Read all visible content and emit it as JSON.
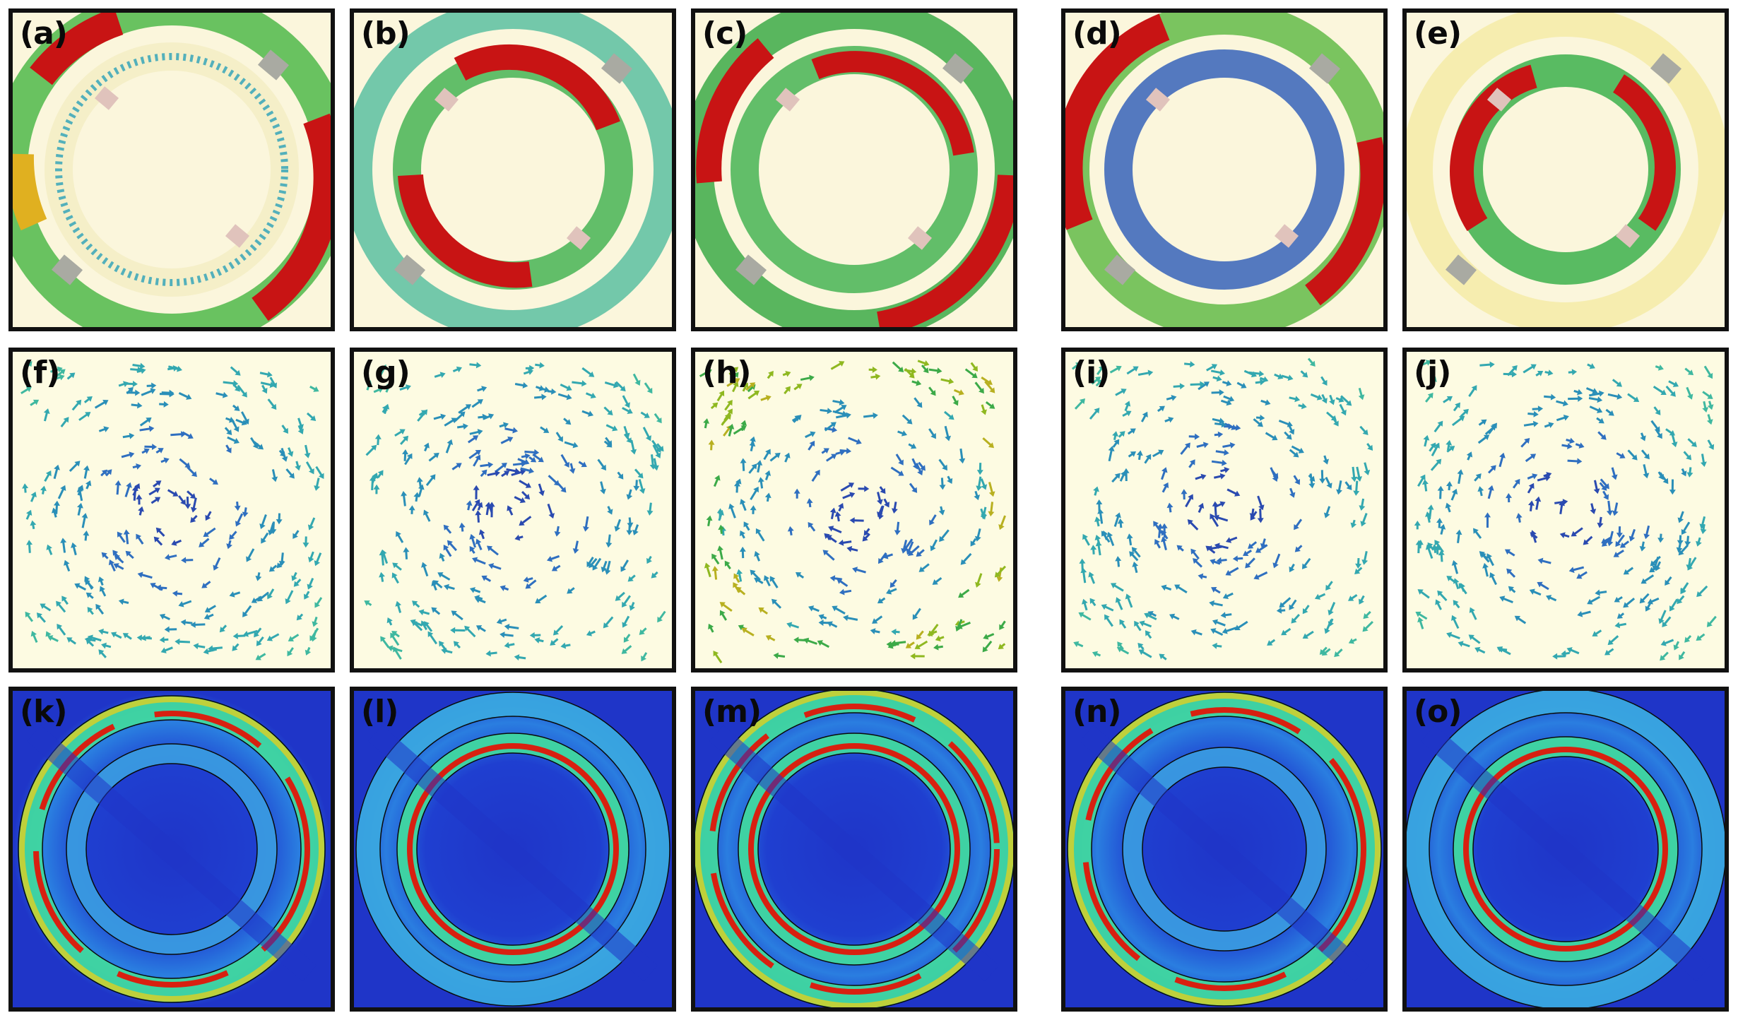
{
  "colors": {
    "cream": "#fbf6dc",
    "cream_light": "#fdfbe2",
    "field_blue": "#1f35c8",
    "red": "#c81414",
    "gray_marker": "#a9aaa2",
    "pink_marker": "#e0c3bc"
  },
  "panels": {
    "a": {
      "label": "(a)"
    },
    "b": {
      "label": "(b)"
    },
    "c": {
      "label": "(c)"
    },
    "d": {
      "label": "(d)"
    },
    "e": {
      "label": "(e)"
    },
    "f": {
      "label": "(f)"
    },
    "g": {
      "label": "(g)"
    },
    "h": {
      "label": "(h)"
    },
    "i": {
      "label": "(i)"
    },
    "j": {
      "label": "(j)"
    },
    "k": {
      "label": "(k)"
    },
    "l": {
      "label": "(l)"
    },
    "m": {
      "label": "(m)"
    },
    "n": {
      "label": "(n)"
    },
    "o": {
      "label": "(o)"
    }
  }
}
